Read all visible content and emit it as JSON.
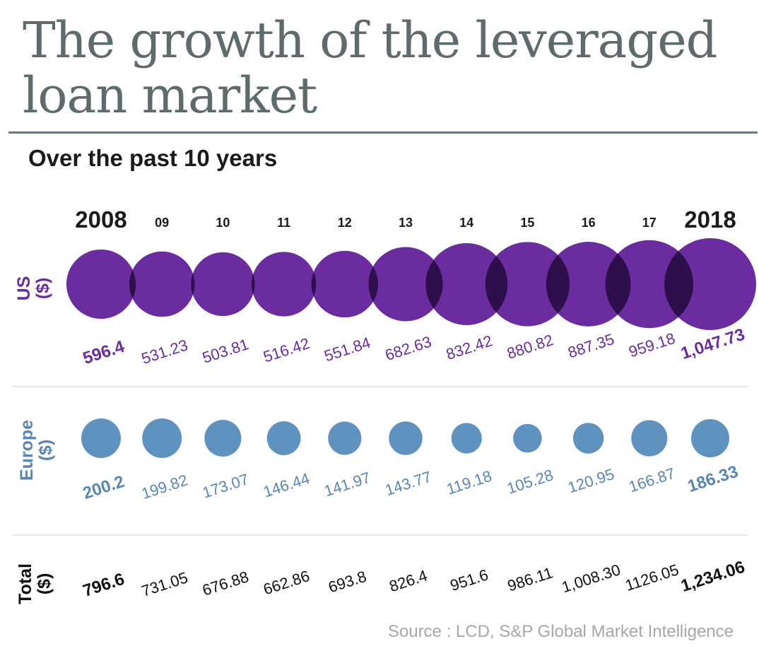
{
  "title_line1": "The growth of the leveraged",
  "title_line2": "loan market",
  "subtitle": "Over the past 10 years",
  "source": "Source : LCD, S&P Global Market Intelligence",
  "colors": {
    "us": "#6a2c9f",
    "us_overlap": "#2c0f4b",
    "us_label": "#6a2c9f",
    "europe": "#6092c0",
    "europe_label": "#5b86b3",
    "total": "#111111",
    "title": "#5f6a6d"
  },
  "chart_data": {
    "type": "bubble",
    "years": [
      "2008",
      "09",
      "10",
      "11",
      "12",
      "13",
      "14",
      "15",
      "16",
      "17",
      "2018"
    ],
    "row_labels": {
      "us": [
        "US",
        "($)"
      ],
      "europe": [
        "Europe",
        "($)"
      ],
      "total": [
        "Total",
        "($)"
      ]
    },
    "series": [
      {
        "name": "US",
        "values": [
          596.4,
          531.23,
          503.81,
          516.42,
          551.84,
          682.63,
          832.42,
          880.82,
          887.35,
          959.18,
          1047.73
        ],
        "labels": [
          "596.4",
          "531.23",
          "503.81",
          "516.42",
          "551.84",
          "682.63",
          "832.42",
          "880.82",
          "887.35",
          "959.18",
          "1,047.73"
        ]
      },
      {
        "name": "Europe",
        "values": [
          200.2,
          199.82,
          173.07,
          146.44,
          141.97,
          143.77,
          119.18,
          105.28,
          120.95,
          166.87,
          186.33
        ],
        "labels": [
          "200.2",
          "199.82",
          "173.07",
          "146.44",
          "141.97",
          "143.77",
          "119.18",
          "105.28",
          "120.95",
          "166.87",
          "186.33"
        ]
      },
      {
        "name": "Total",
        "values": [
          796.6,
          731.05,
          676.88,
          662.86,
          693.8,
          826.4,
          951.6,
          986.11,
          1008.3,
          1126.05,
          1234.06
        ],
        "labels": [
          "796.6",
          "731.05",
          "676.88",
          "662.86",
          "693.8",
          "826.4",
          "951.6",
          "986.11",
          "1,008.30",
          "1126.05",
          "1,234.06"
        ]
      }
    ],
    "emphasized_years": [
      "2008",
      "2018"
    ]
  }
}
